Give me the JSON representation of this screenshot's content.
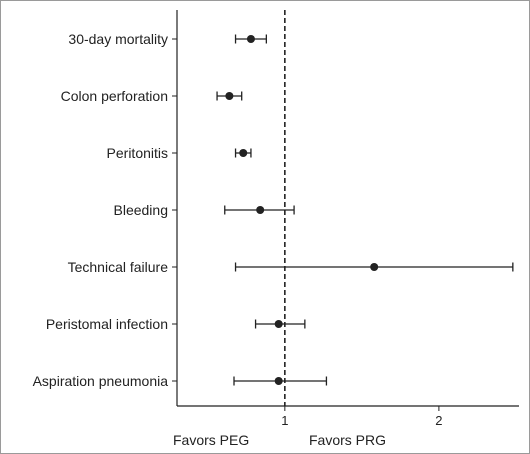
{
  "chart_data": {
    "type": "forest",
    "categories": [
      "30-day mortality",
      "Colon perforation",
      "Peritonitis",
      "Bleeding",
      "Technical failure",
      "Peristomal infection",
      "Aspiration pneumonia"
    ],
    "points": [
      {
        "label": "30-day mortality",
        "estimate": 0.78,
        "lower": 0.68,
        "upper": 0.88
      },
      {
        "label": "Colon perforation",
        "estimate": 0.64,
        "lower": 0.56,
        "upper": 0.72
      },
      {
        "label": "Peritonitis",
        "estimate": 0.73,
        "lower": 0.68,
        "upper": 0.78
      },
      {
        "label": "Bleeding",
        "estimate": 0.84,
        "lower": 0.61,
        "upper": 1.06
      },
      {
        "label": "Technical failure",
        "estimate": 1.58,
        "lower": 0.68,
        "upper": 2.48
      },
      {
        "label": "Peristomal infection",
        "estimate": 0.96,
        "lower": 0.81,
        "upper": 1.13
      },
      {
        "label": "Aspiration pneumonia",
        "estimate": 0.96,
        "lower": 0.67,
        "upper": 1.27
      }
    ],
    "reference_line": 1,
    "reference_style": "dashed",
    "xlim": [
      0.3,
      2.52
    ],
    "xticks": [
      1,
      2
    ],
    "xtick_labels": [
      "1",
      "2"
    ],
    "annotations": {
      "left": "Favors PEG",
      "right": "Favors PRG"
    },
    "grid": false,
    "legend": "none"
  }
}
